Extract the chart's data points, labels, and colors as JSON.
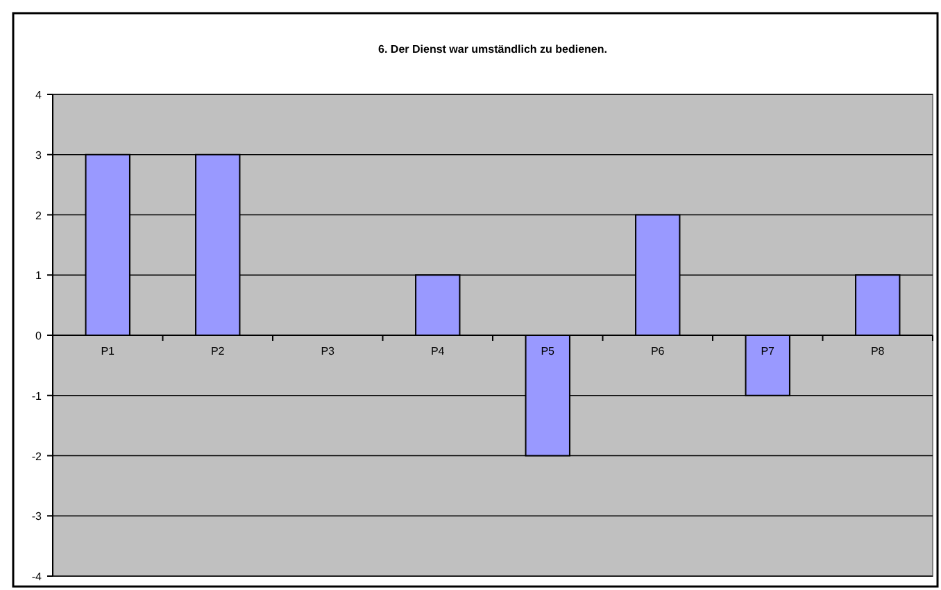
{
  "chart_data": {
    "type": "bar",
    "title": "6. Der Dienst war umständlich zu bedienen.",
    "categories": [
      "P1",
      "P2",
      "P3",
      "P4",
      "P5",
      "P6",
      "P7",
      "P8"
    ],
    "values": [
      3,
      3,
      0,
      1,
      -2,
      2,
      -1,
      1
    ],
    "color": "#9999ff",
    "ylim": [
      -4,
      4
    ],
    "yticks": [
      -4,
      -3,
      -2,
      -1,
      0,
      1,
      2,
      3,
      4
    ],
    "grid": "y"
  }
}
